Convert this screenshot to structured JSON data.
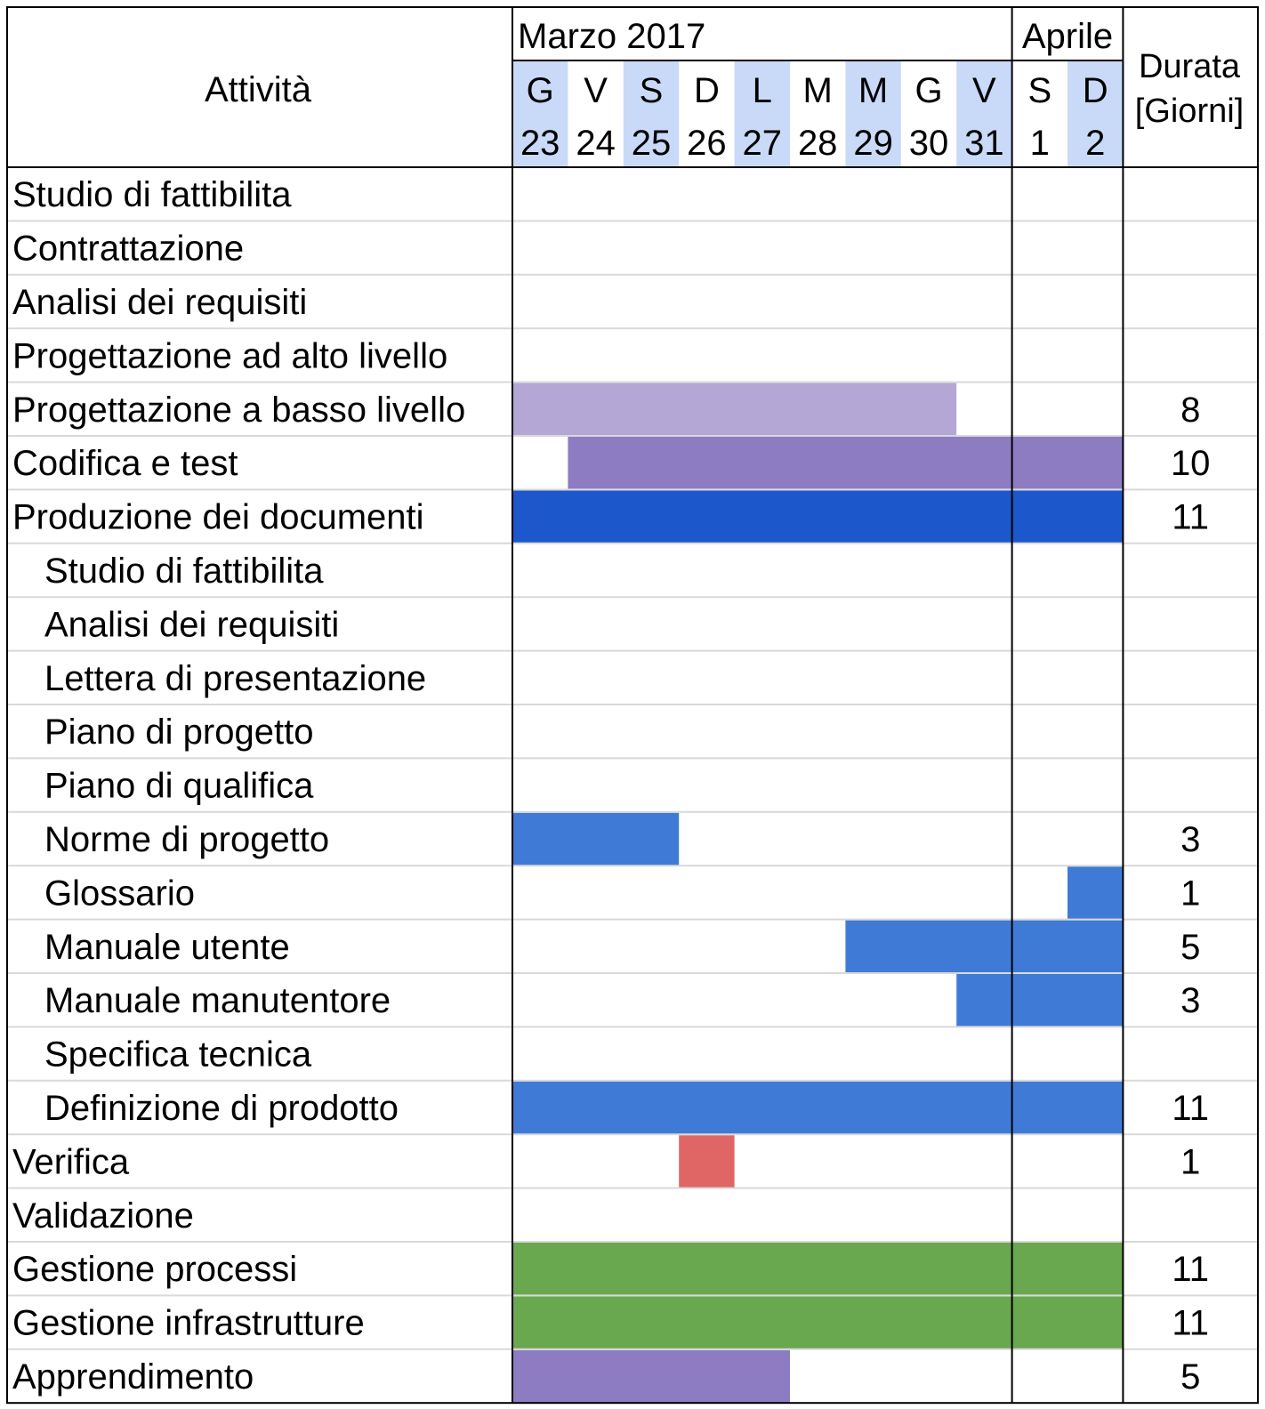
{
  "header": {
    "activity_label": "Attività",
    "months": [
      {
        "label": "Marzo 2017",
        "first_day": 0,
        "last_day": 8
      },
      {
        "label": "Aprile",
        "first_day": 9,
        "last_day": 10
      }
    ],
    "duration_label_line1": "Durata",
    "duration_label_line2": "[Giorni]"
  },
  "days": [
    {
      "weekday": "G",
      "date": "23",
      "shaded": true
    },
    {
      "weekday": "V",
      "date": "24",
      "shaded": false
    },
    {
      "weekday": "S",
      "date": "25",
      "shaded": true
    },
    {
      "weekday": "D",
      "date": "26",
      "shaded": false
    },
    {
      "weekday": "L",
      "date": "27",
      "shaded": true
    },
    {
      "weekday": "M",
      "date": "28",
      "shaded": false
    },
    {
      "weekday": "M",
      "date": "29",
      "shaded": true
    },
    {
      "weekday": "G",
      "date": "30",
      "shaded": false
    },
    {
      "weekday": "V",
      "date": "31",
      "shaded": true
    },
    {
      "weekday": "S",
      "date": "1",
      "shaded": false
    },
    {
      "weekday": "D",
      "date": "2",
      "shaded": true
    }
  ],
  "colors": {
    "day_header_shade": "#c9daf8",
    "grid_line": "#d9d9d9",
    "border": "#000000",
    "light_purple": "#b4a7d6",
    "purple": "#8e7cc3",
    "dark_blue": "#1c57cc",
    "blue": "#3f7bd6",
    "red": "#e06666",
    "green": "#6aa84f"
  },
  "chart_data": {
    "type": "gantt",
    "tasks": [
      {
        "name": "Studio di fattibilita",
        "indent": false,
        "start": null,
        "end": null,
        "color": null,
        "duration": ""
      },
      {
        "name": "Contrattazione",
        "indent": false,
        "start": null,
        "end": null,
        "color": null,
        "duration": ""
      },
      {
        "name": "Analisi dei requisiti",
        "indent": false,
        "start": null,
        "end": null,
        "color": null,
        "duration": ""
      },
      {
        "name": "Progettazione ad alto livello",
        "indent": false,
        "start": null,
        "end": null,
        "color": null,
        "duration": ""
      },
      {
        "name": "Progettazione a basso livello",
        "indent": false,
        "start": "23",
        "end": "30",
        "color": "#b4a7d6",
        "duration": "8"
      },
      {
        "name": "Codifica e test",
        "indent": false,
        "start": "24",
        "end": "2",
        "color": "#8e7cc3",
        "duration": "10"
      },
      {
        "name": "Produzione dei documenti",
        "indent": false,
        "start": "23",
        "end": "2",
        "color": "#1c57cc",
        "duration": "11"
      },
      {
        "name": "Studio di fattibilita",
        "indent": true,
        "start": null,
        "end": null,
        "color": null,
        "duration": ""
      },
      {
        "name": "Analisi dei requisiti",
        "indent": true,
        "start": null,
        "end": null,
        "color": null,
        "duration": ""
      },
      {
        "name": "Lettera di presentazione",
        "indent": true,
        "start": null,
        "end": null,
        "color": null,
        "duration": ""
      },
      {
        "name": "Piano di progetto",
        "indent": true,
        "start": null,
        "end": null,
        "color": null,
        "duration": ""
      },
      {
        "name": "Piano di qualifica",
        "indent": true,
        "start": null,
        "end": null,
        "color": null,
        "duration": ""
      },
      {
        "name": "Norme di progetto",
        "indent": true,
        "start": "23",
        "end": "25",
        "color": "#3f7bd6",
        "duration": "3"
      },
      {
        "name": "Glossario",
        "indent": true,
        "start": "2",
        "end": "2",
        "color": "#3f7bd6",
        "duration": "1"
      },
      {
        "name": "Manuale utente",
        "indent": true,
        "start": "29",
        "end": "2",
        "color": "#3f7bd6",
        "duration": "5"
      },
      {
        "name": "Manuale manutentore",
        "indent": true,
        "start": "31",
        "end": "2",
        "color": "#3f7bd6",
        "duration": "3"
      },
      {
        "name": "Specifica tecnica",
        "indent": true,
        "start": null,
        "end": null,
        "color": null,
        "duration": ""
      },
      {
        "name": "Definizione di prodotto",
        "indent": true,
        "start": "23",
        "end": "2",
        "color": "#3f7bd6",
        "duration": "11"
      },
      {
        "name": "Verifica",
        "indent": false,
        "start": "26",
        "end": "26",
        "color": "#e06666",
        "duration": "1"
      },
      {
        "name": "Validazione",
        "indent": false,
        "start": null,
        "end": null,
        "color": null,
        "duration": ""
      },
      {
        "name": "Gestione processi",
        "indent": false,
        "start": "23",
        "end": "2",
        "color": "#6aa84f",
        "duration": "11"
      },
      {
        "name": "Gestione infrastrutture",
        "indent": false,
        "start": "23",
        "end": "2",
        "color": "#6aa84f",
        "duration": "11"
      },
      {
        "name": "Apprendimento",
        "indent": false,
        "start": "23",
        "end": "27",
        "color": "#8e7cc3",
        "duration": "5"
      }
    ]
  }
}
